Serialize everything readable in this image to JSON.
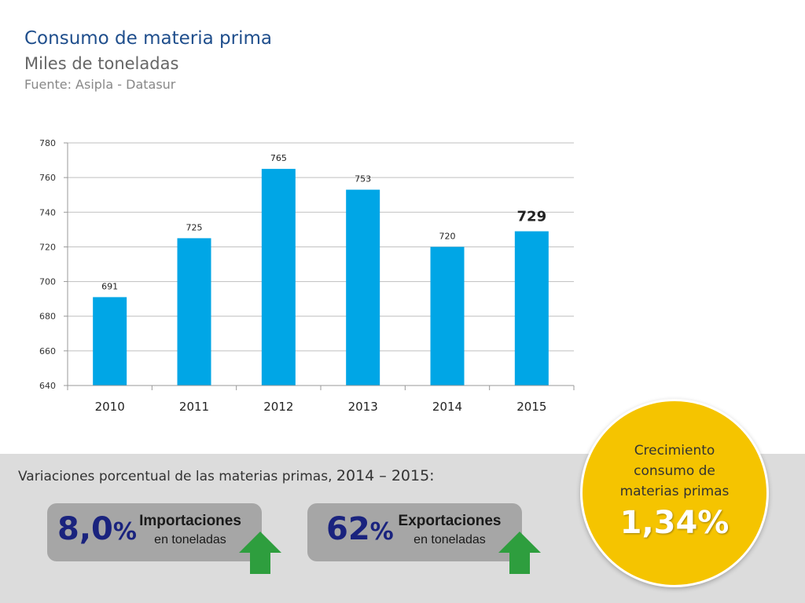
{
  "header": {
    "title": "Consumo de materia prima",
    "subtitle": "Miles de toneladas",
    "source": "Fuente: Asipla - Datasur"
  },
  "chart_data": {
    "type": "bar",
    "categories": [
      "2010",
      "2011",
      "2012",
      "2013",
      "2014",
      "2015"
    ],
    "values": [
      691,
      725,
      765,
      753,
      720,
      729
    ],
    "data_labels": [
      "691",
      "725",
      "765",
      "753",
      "720",
      "729"
    ],
    "highlight_index": 5,
    "ylim": [
      640,
      780
    ],
    "yticks": [
      "640",
      "660",
      "680",
      "700",
      "720",
      "740",
      "760",
      "780"
    ],
    "grid": true,
    "bar_color": "#00a6e6"
  },
  "footer": {
    "variation_text": "Variaciones porcentual de las materias primas,",
    "variation_years": "2014 – 2015:",
    "imports": {
      "value": "8,0",
      "unit": "%",
      "label": "Importaciones",
      "sublabel": "en toneladas",
      "trend": "up-arrow-icon"
    },
    "exports": {
      "value": "62",
      "unit": "%",
      "label": "Exportaciones",
      "sublabel": "en toneladas",
      "trend": "up-arrow-icon"
    }
  },
  "growth_circle": {
    "line1": "Crecimiento",
    "line2": "consumo de",
    "line3": "materias primas",
    "value": "1,34%",
    "color": "#f5c400"
  },
  "colors": {
    "title": "#1f4e8c",
    "stat_value": "#1a237e",
    "arrow": "#2e9e3e"
  }
}
